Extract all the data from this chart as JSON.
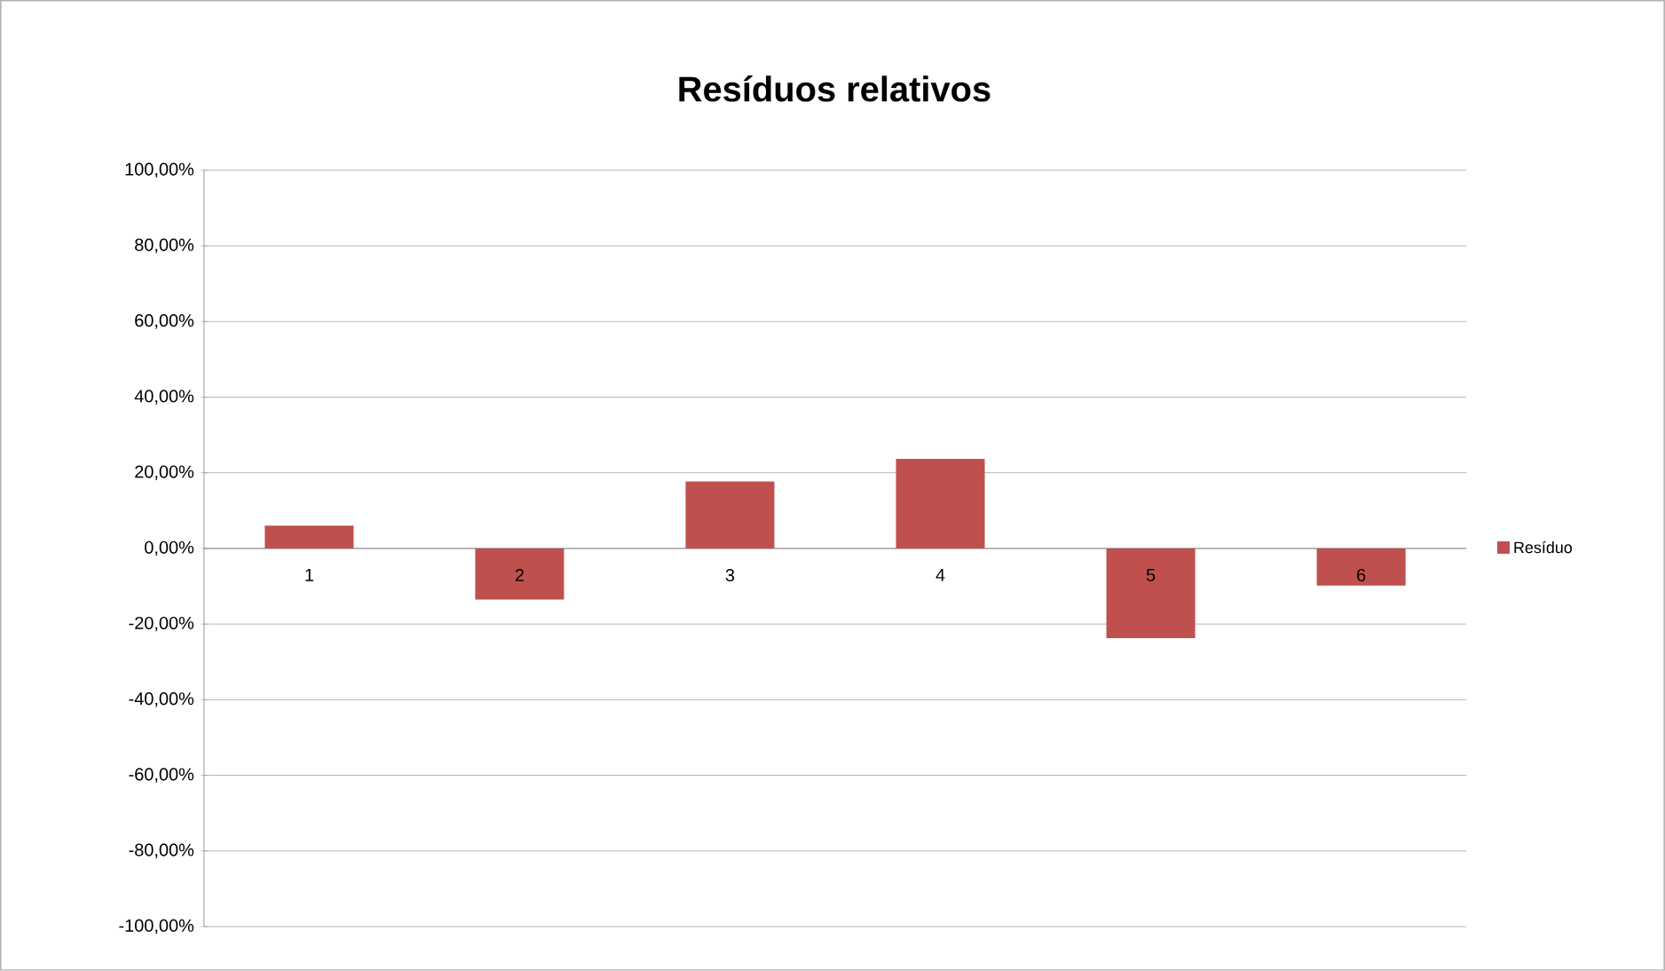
{
  "chart_data": {
    "type": "bar",
    "title": "Resíduos relativos",
    "categories": [
      "1",
      "2",
      "3",
      "4",
      "5",
      "6"
    ],
    "series": [
      {
        "name": "Resíduo",
        "color": "#c0504d",
        "values": [
          6,
          -13.5,
          17.7,
          23.7,
          -23.7,
          -9.8
        ]
      }
    ],
    "ylim": [
      -100,
      100
    ],
    "yticks": [
      {
        "value": -100,
        "label": "-100,00%"
      },
      {
        "value": -80,
        "label": "-80,00%"
      },
      {
        "value": -60,
        "label": "-60,00%"
      },
      {
        "value": -40,
        "label": "-40,00%"
      },
      {
        "value": -20,
        "label": "-20,00%"
      },
      {
        "value": 0,
        "label": "0,00%"
      },
      {
        "value": 20,
        "label": "20,00%"
      },
      {
        "value": 40,
        "label": "40,00%"
      },
      {
        "value": 60,
        "label": "60,00%"
      },
      {
        "value": 80,
        "label": "80,00%"
      },
      {
        "value": 100,
        "label": "100,00%"
      }
    ],
    "grid": "y",
    "legend": "right"
  }
}
